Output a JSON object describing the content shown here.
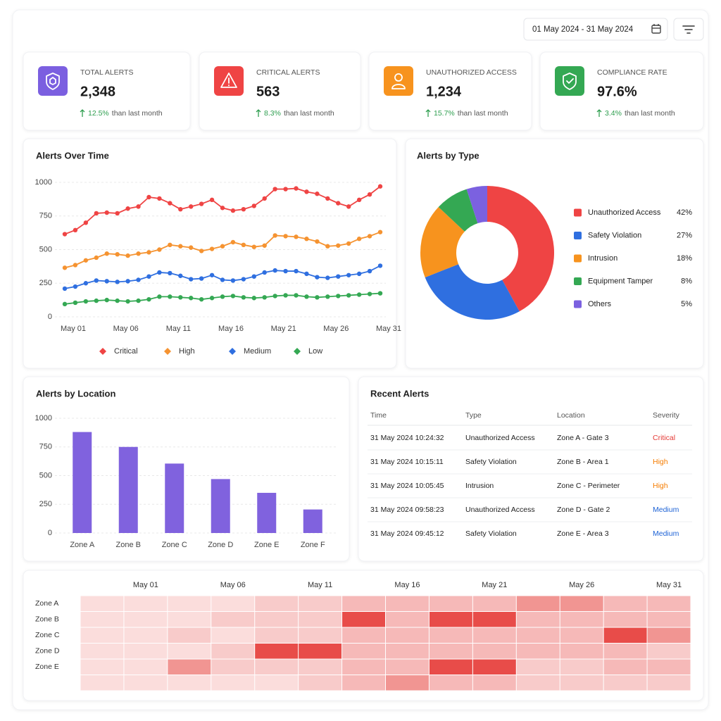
{
  "header": {
    "date_range": "01 May 2024 - 31 May 2024"
  },
  "kpis": [
    {
      "label": "TOTAL ALERTS",
      "value": "2,348",
      "change": "12.5%",
      "note": "than last month",
      "color": "#7b5fe0"
    },
    {
      "label": "CRITICAL ALERTS",
      "value": "563",
      "change": "8.3%",
      "note": "than last month",
      "color": "#ef4444"
    },
    {
      "label": "UNAUTHORIZED ACCESS",
      "value": "1,234",
      "change": "15.7%",
      "note": "than last month",
      "color": "#f7931e"
    },
    {
      "label": "COMPLIANCE RATE",
      "value": "97.6%",
      "change": "3.4%",
      "note": "than last month",
      "color": "#34a853"
    }
  ],
  "chart_data": [
    {
      "type": "line",
      "title": "Alerts Over Time",
      "categories": [
        "May 01",
        null,
        null,
        null,
        null,
        "May 06",
        null,
        null,
        null,
        null,
        "May 11",
        null,
        null,
        null,
        null,
        "May 16",
        null,
        null,
        null,
        null,
        "May 21",
        null,
        null,
        null,
        null,
        "May 26",
        null,
        null,
        null,
        null,
        "May 31"
      ],
      "series": [
        {
          "name": "Critical",
          "color": "#ef4444",
          "values": [
            615,
            645,
            700,
            770,
            775,
            770,
            805,
            820,
            890,
            880,
            845,
            800,
            820,
            840,
            870,
            810,
            790,
            800,
            825,
            880,
            950,
            950,
            955,
            930,
            915,
            880,
            845,
            820,
            870,
            910,
            970
          ]
        },
        {
          "name": "High",
          "color": "#f59331",
          "values": [
            365,
            385,
            420,
            440,
            470,
            465,
            455,
            470,
            480,
            500,
            535,
            525,
            515,
            490,
            505,
            525,
            555,
            535,
            520,
            530,
            605,
            600,
            595,
            580,
            560,
            525,
            530,
            545,
            580,
            600,
            630
          ]
        },
        {
          "name": "Medium",
          "color": "#2f6fe0",
          "values": [
            210,
            225,
            250,
            270,
            265,
            260,
            265,
            275,
            300,
            330,
            325,
            305,
            280,
            285,
            310,
            275,
            270,
            280,
            300,
            330,
            345,
            340,
            340,
            320,
            295,
            290,
            300,
            310,
            320,
            340,
            380
          ]
        },
        {
          "name": "Low",
          "color": "#34a853",
          "values": [
            95,
            105,
            115,
            120,
            125,
            120,
            115,
            120,
            130,
            150,
            150,
            145,
            140,
            130,
            140,
            150,
            155,
            145,
            140,
            145,
            155,
            160,
            160,
            150,
            145,
            150,
            155,
            160,
            165,
            170,
            175
          ]
        }
      ],
      "ylim": [
        0,
        1000
      ],
      "yticks": [
        0,
        250,
        500,
        750,
        1000
      ],
      "grid": true,
      "legend": "bottom"
    },
    {
      "type": "pie",
      "title": "Alerts by Type",
      "categories": [
        "Unauthorized Access",
        "Safety Violation",
        "Intrusion",
        "Equipment Tamper",
        "Others"
      ],
      "values": [
        42,
        27,
        18,
        8,
        5
      ],
      "value_labels": [
        "42%",
        "27%",
        "18%",
        "8%",
        "5%"
      ],
      "colors": [
        "#ef4444",
        "#2f6fe0",
        "#f7931e",
        "#34a853",
        "#7b61e0"
      ],
      "donut": true,
      "legend": "right"
    },
    {
      "type": "bar",
      "title": "Alerts by Location",
      "categories": [
        "Zone A",
        "Zone B",
        "Zone C",
        "Zone D",
        "Zone E",
        "Zone F"
      ],
      "values": [
        880,
        750,
        605,
        470,
        350,
        205
      ],
      "color": "#8062de",
      "ylim": [
        0,
        1000
      ],
      "yticks": [
        0,
        250,
        500,
        750,
        1000
      ],
      "grid": true
    },
    {
      "type": "heatmap",
      "categories": [
        null,
        "May 01",
        null,
        "May 06",
        null,
        "May 11",
        null,
        "May 16",
        null,
        "May 21",
        null,
        "May 26",
        null,
        "May 31"
      ],
      "rows": [
        "Zone A",
        "Zone B",
        "Zone C",
        "Zone D",
        "Zone E",
        null
      ],
      "values": [
        [
          1,
          1,
          1,
          1,
          2,
          2,
          3,
          3,
          3,
          3,
          5,
          5,
          3,
          3
        ],
        [
          1,
          1,
          1,
          2,
          2,
          2,
          9,
          3,
          9,
          9,
          3,
          3,
          3,
          3
        ],
        [
          1,
          1,
          2,
          1,
          2,
          2,
          3,
          3,
          3,
          3,
          3,
          3,
          9,
          5
        ],
        [
          1,
          1,
          1,
          2,
          9,
          9,
          3,
          3,
          3,
          3,
          3,
          3,
          3,
          2
        ],
        [
          1,
          1,
          5,
          2,
          2,
          2,
          3,
          3,
          9,
          9,
          2,
          2,
          3,
          3
        ],
        [
          1,
          1,
          1,
          1,
          1,
          2,
          3,
          5,
          3,
          3,
          2,
          2,
          2,
          2
        ]
      ],
      "color": "#e53935"
    }
  ],
  "recent_alerts": {
    "title": "Recent Alerts",
    "columns": [
      "Time",
      "Type",
      "Location",
      "Severity"
    ],
    "rows": [
      [
        "31 May 2024 10:24:32",
        "Unauthorized Access",
        "Zone A - Gate 3",
        "Critical"
      ],
      [
        "31 May 2024 10:15:11",
        "Safety Violation",
        "Zone B - Area 1",
        "High"
      ],
      [
        "31 May 2024 10:05:45",
        "Intrusion",
        "Zone C - Perimeter",
        "High"
      ],
      [
        "31 May 2024 09:58:23",
        "Unauthorized Access",
        "Zone D - Gate 2",
        "Medium"
      ],
      [
        "31 May 2024 09:45:12",
        "Safety Violation",
        "Zone E - Area 3",
        "Medium"
      ]
    ],
    "severity_colors": {
      "Critical": "#e53935",
      "High": "#f57c00",
      "Medium": "#1e63d6"
    }
  }
}
